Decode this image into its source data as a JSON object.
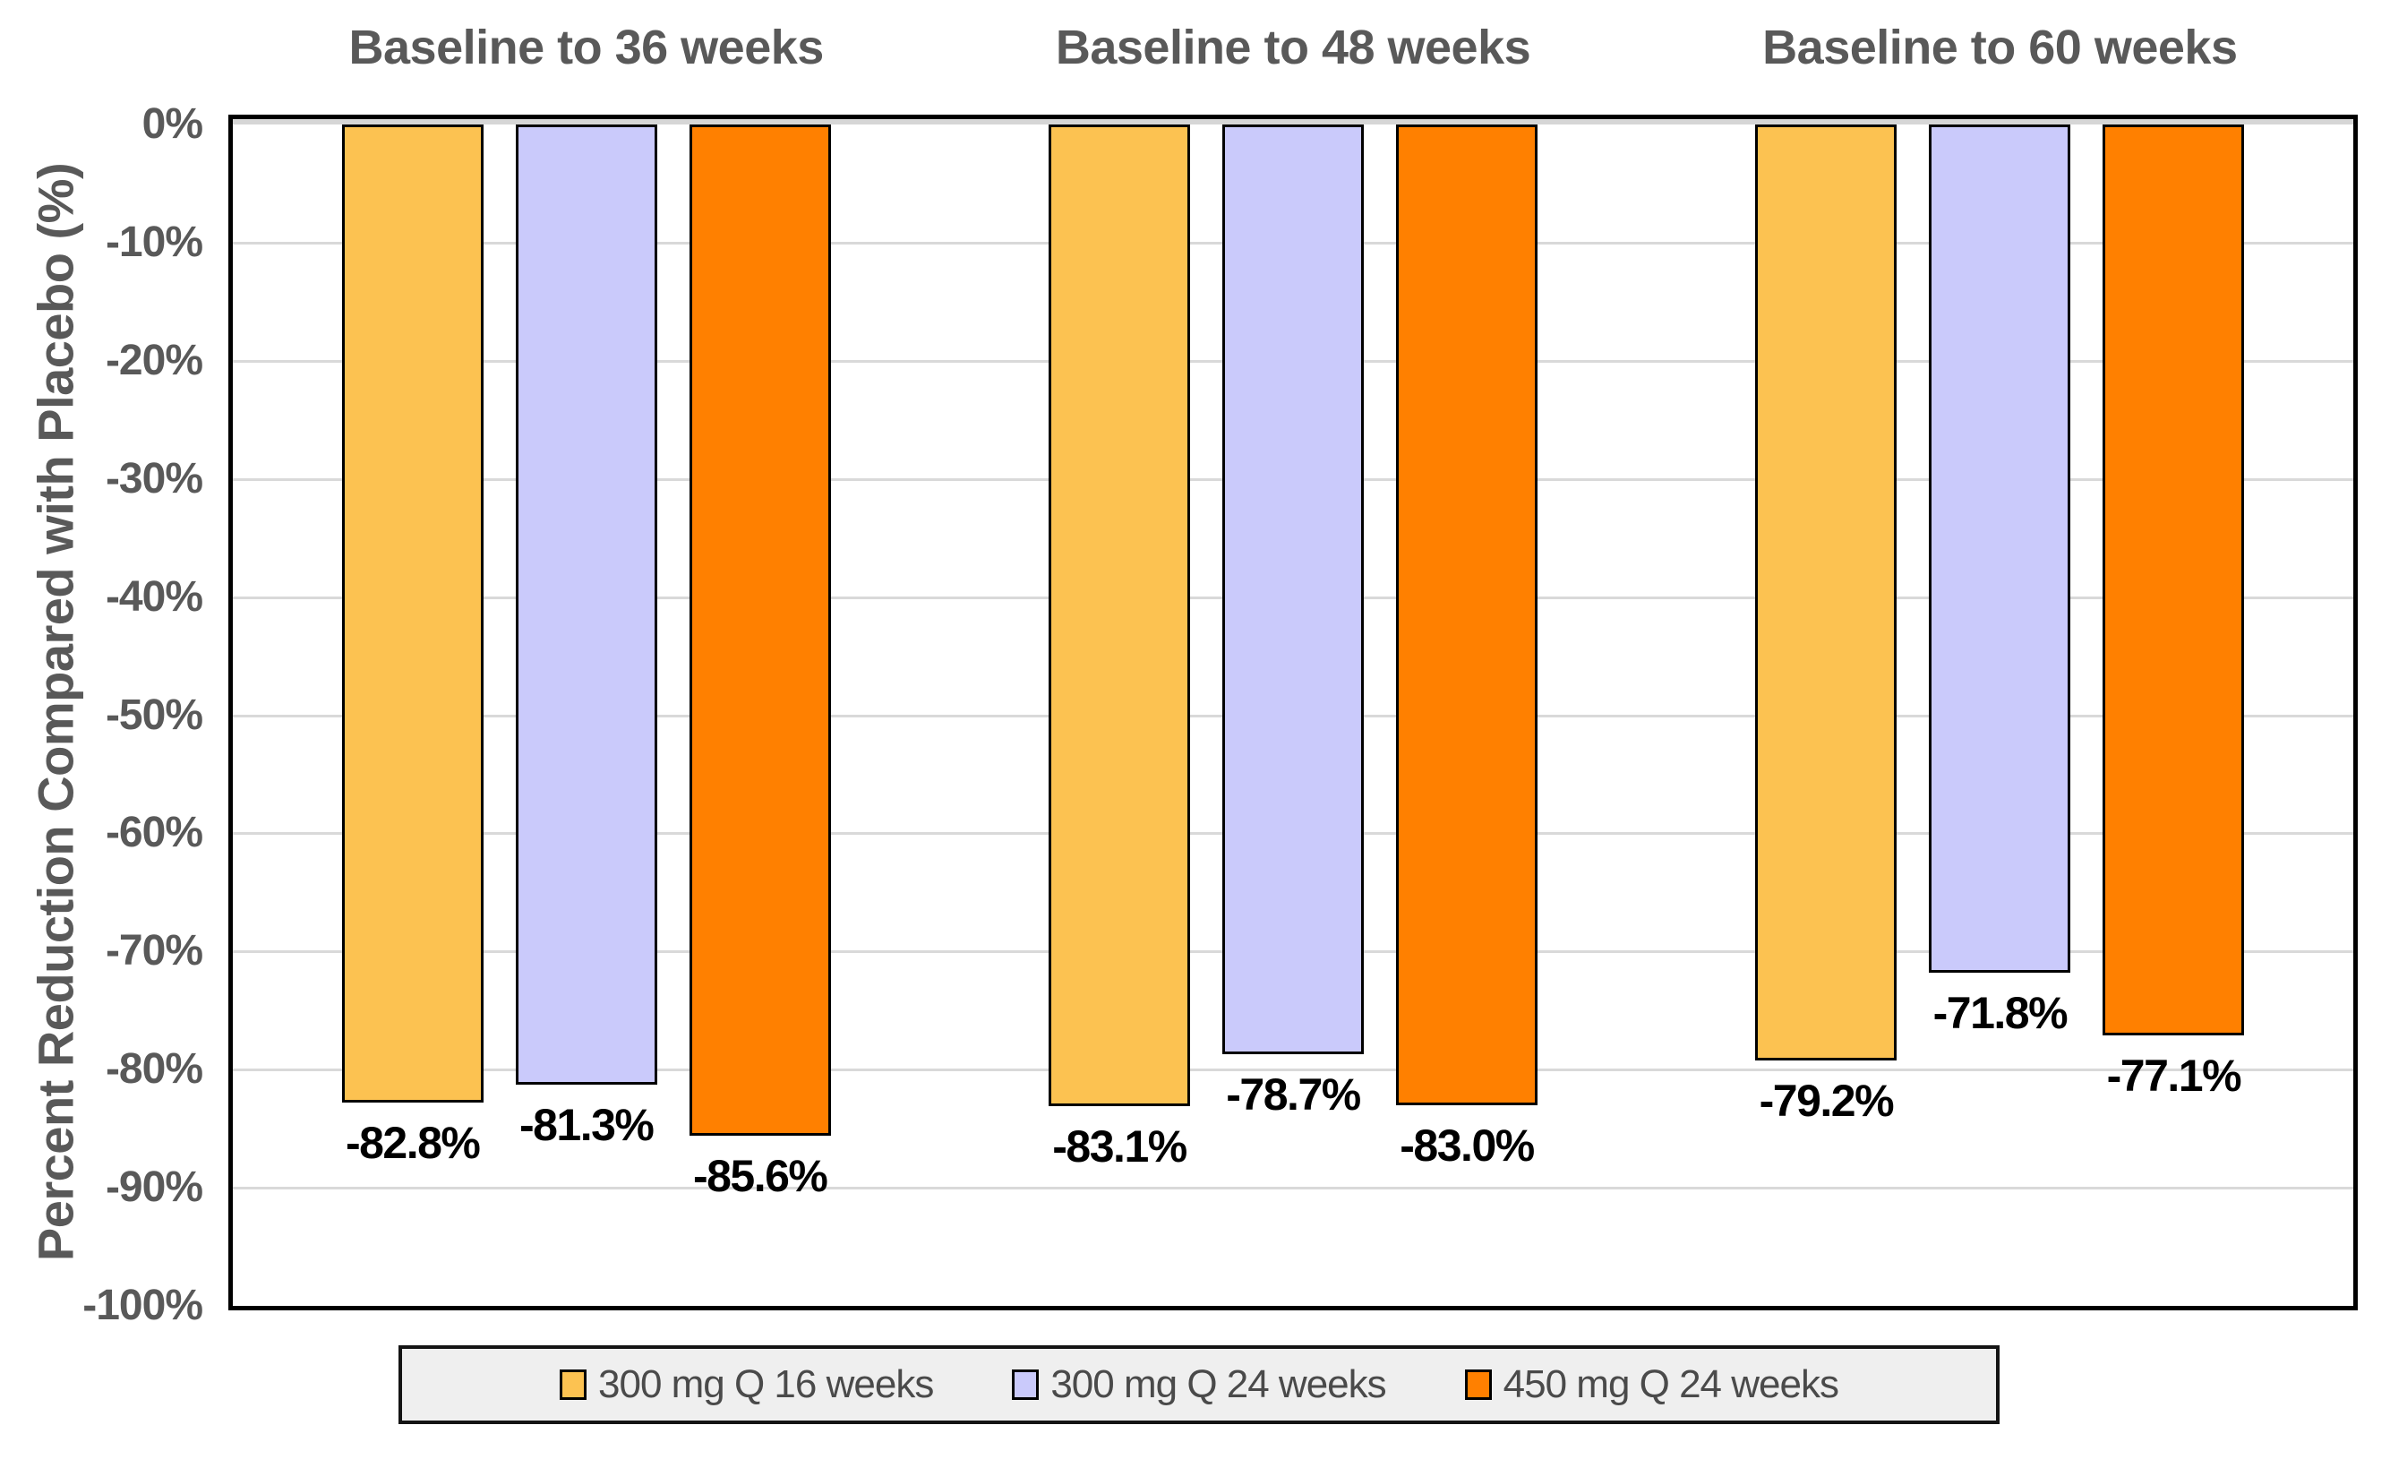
{
  "chart_data": {
    "type": "bar",
    "title": "",
    "categories": [
      "Baseline to 36 weeks",
      "Baseline to 48 weeks",
      "Baseline to 60 weeks"
    ],
    "series": [
      {
        "name": "300 mg Q 16 weeks",
        "color": "#FCC251",
        "values": [
          -82.8,
          -83.1,
          -79.2
        ],
        "data_labels": [
          "-82.8%",
          "-83.1%",
          "-79.2%"
        ]
      },
      {
        "name": "300 mg Q 24 weeks",
        "color": "#CACAFB",
        "values": [
          -81.3,
          -78.7,
          -71.8
        ],
        "data_labels": [
          "-81.3%",
          "-78.7%",
          "-71.8%"
        ]
      },
      {
        "name": "450 mg Q 24 weeks",
        "color": "#FF8000",
        "values": [
          -85.6,
          -83.0,
          -77.1
        ],
        "data_labels": [
          "-85.6%",
          "-83.0%",
          "-77.1%"
        ]
      }
    ],
    "xlabel": "",
    "ylabel": "Percent Reduction Compared with Placebo (%)",
    "ylim": [
      0,
      -100
    ],
    "y_ticks": [
      "0%",
      "-10%",
      "-20%",
      "-30%",
      "-40%",
      "-50%",
      "-60%",
      "-70%",
      "-80%",
      "-90%",
      "-100%"
    ],
    "grid": true,
    "legend_position": "bottom",
    "colors": {
      "axis_text": "#595959",
      "data_label": "#000000",
      "gridline": "#D9D9D9",
      "plot_border": "#000000",
      "legend_bg": "#EFEFEF",
      "legend_border": "#141414"
    }
  }
}
